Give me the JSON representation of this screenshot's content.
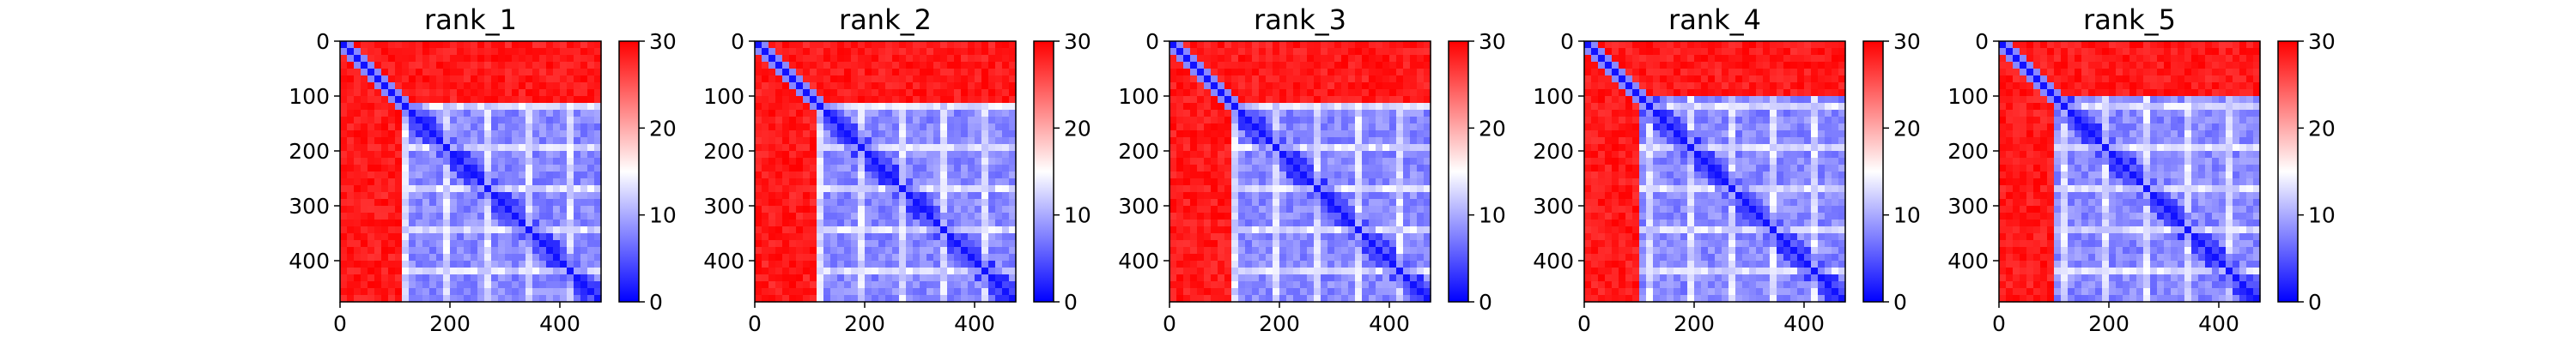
{
  "chart_data": [
    {
      "type": "heatmap",
      "title": "rank_1",
      "xlim": [
        0,
        475
      ],
      "ylim": [
        475,
        0
      ],
      "xticks": [
        0,
        200,
        400
      ],
      "yticks": [
        0,
        100,
        200,
        300,
        400
      ],
      "colorbar": {
        "min": 0,
        "max": 30,
        "ticks": [
          0,
          10,
          20,
          30
        ],
        "colormap": "bwr"
      },
      "domain_boundary": 115
    },
    {
      "type": "heatmap",
      "title": "rank_2",
      "xlim": [
        0,
        475
      ],
      "ylim": [
        475,
        0
      ],
      "xticks": [
        0,
        200,
        400
      ],
      "yticks": [
        0,
        100,
        200,
        300,
        400
      ],
      "colorbar": {
        "min": 0,
        "max": 30,
        "ticks": [
          0,
          10,
          20,
          30
        ],
        "colormap": "bwr"
      },
      "domain_boundary": 115
    },
    {
      "type": "heatmap",
      "title": "rank_3",
      "xlim": [
        0,
        475
      ],
      "ylim": [
        475,
        0
      ],
      "xticks": [
        0,
        200,
        400
      ],
      "yticks": [
        0,
        100,
        200,
        300,
        400
      ],
      "colorbar": {
        "min": 0,
        "max": 30,
        "ticks": [
          0,
          10,
          20,
          30
        ],
        "colormap": "bwr"
      },
      "domain_boundary": 115
    },
    {
      "type": "heatmap",
      "title": "rank_4",
      "xlim": [
        0,
        475
      ],
      "ylim": [
        475,
        0
      ],
      "xticks": [
        0,
        200,
        400
      ],
      "yticks": [
        0,
        100,
        200,
        300,
        400
      ],
      "colorbar": {
        "min": 0,
        "max": 30,
        "ticks": [
          0,
          10,
          20,
          30
        ],
        "colormap": "bwr"
      },
      "domain_boundary": 100
    },
    {
      "type": "heatmap",
      "title": "rank_5",
      "xlim": [
        0,
        475
      ],
      "ylim": [
        475,
        0
      ],
      "xticks": [
        0,
        200,
        400
      ],
      "yticks": [
        0,
        100,
        200,
        300,
        400
      ],
      "colorbar": {
        "min": 0,
        "max": 30,
        "ticks": [
          0,
          10,
          20,
          30
        ],
        "colormap": "bwr"
      },
      "domain_boundary": 100
    }
  ],
  "colors": {
    "low": "#0000ff",
    "mid": "#ffffff",
    "high": "#ff0000"
  }
}
